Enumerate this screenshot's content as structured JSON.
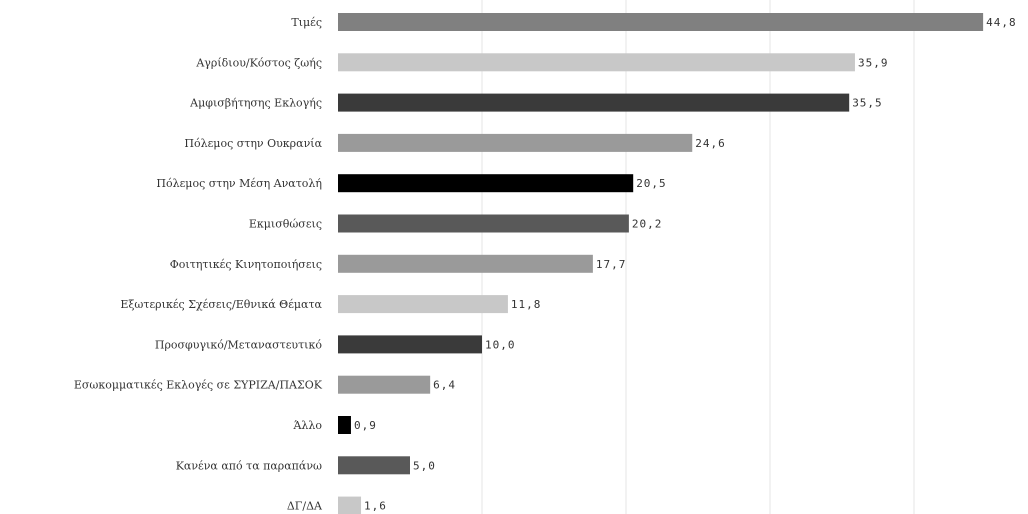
{
  "chart_data": {
    "type": "bar",
    "orientation": "horizontal",
    "title": "",
    "xlabel": "",
    "ylabel": "",
    "xlim": [
      0,
      46
    ],
    "grid": true,
    "legend": "none",
    "categories": [
      "Τιμές",
      "Αγρίδιου/Κόστος ζωής",
      "Αμφισβήτησης Εκλογής",
      "Πόλεμος στην Ουκρανία",
      "Πόλεμος στην Μέση Ανατολή",
      "Εκμισθώσεις",
      "Φοιτητικές Κινητοποιήσεις",
      "Εξωτερικές Σχέσεις/Εθνικά Θέματα",
      "Προσφυγικό/Μεταναστευτικό",
      "Εσωκομματικές Εκλογές σε ΣΥΡΙΖΑ/ΠΑΣΟΚ",
      "Άλλο",
      "Κανένα από τα παραπάνω",
      "ΔΓ/ΔΑ"
    ],
    "values": [
      44.8,
      35.9,
      35.5,
      24.6,
      20.5,
      20.2,
      17.7,
      11.8,
      10.0,
      6.4,
      0.9,
      5.0,
      1.6
    ],
    "value_labels": [
      "44,8",
      "35,9",
      "35,5",
      "24,6",
      "20,5",
      "20,2",
      "17,7",
      "11,8",
      "10,0",
      "6,4",
      "0,9",
      "5,0",
      "1,6"
    ],
    "colors": [
      "#808080",
      "#c8c8c8",
      "#3a3a3a",
      "#9a9a9a",
      "#000000",
      "#595959",
      "#9a9a9a",
      "#c8c8c8",
      "#3a3a3a",
      "#9a9a9a",
      "#000000",
      "#595959",
      "#c8c8c8"
    ]
  }
}
